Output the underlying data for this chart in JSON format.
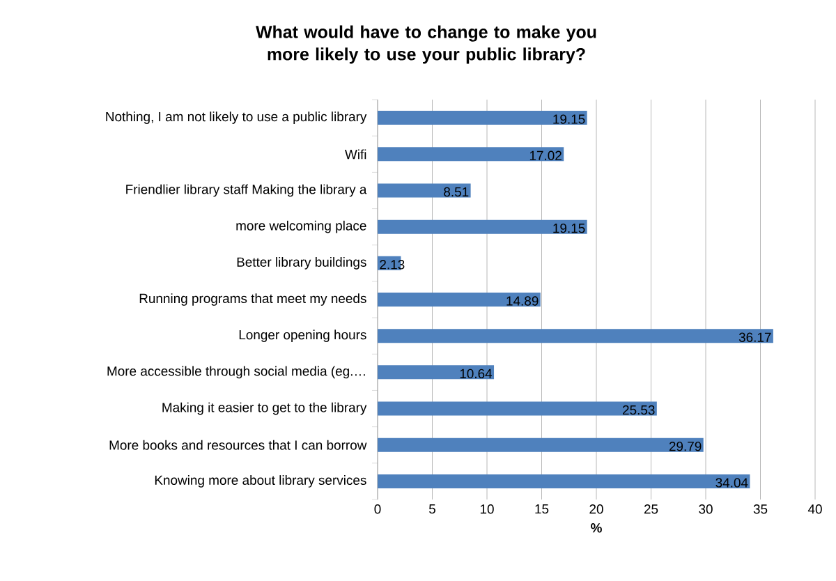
{
  "chart_data": {
    "type": "bar",
    "orientation": "horizontal",
    "title": "What would have to change to make you more likely to use your public library?",
    "categories": [
      "Nothing, I am not likely to use a public library",
      "Wifi",
      "Friendlier library staff Making the library a",
      "more welcoming place",
      "Better library buildings",
      "Running programs that meet my needs",
      "Longer opening hours",
      "More accessible through social media (eg.…",
      "Making it easier to get to the library",
      "More books and resources that I can borrow",
      "Knowing more about library services"
    ],
    "values": [
      19.15,
      17.02,
      8.51,
      19.15,
      2.13,
      14.89,
      36.17,
      10.64,
      25.53,
      29.79,
      34.04
    ],
    "color": "#4f81bd",
    "data_labels": true,
    "xlabel": "%",
    "xlim": [
      0,
      40
    ],
    "xticks": [
      0,
      5,
      10,
      15,
      20,
      25,
      30,
      35,
      40
    ],
    "grid": "x"
  }
}
